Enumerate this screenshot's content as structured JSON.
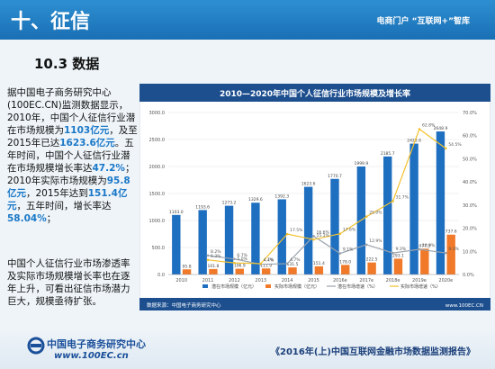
{
  "header": {
    "title": "十、征信",
    "brand": "电商门户 “互联网+”智库"
  },
  "section": "10.3 数据",
  "paragraphs": [
    [
      {
        "text": "据中国电子商务研究中心(100EC.CN)监测数据显示，2010年，中国个人征信行业潜在市场规模为"
      },
      {
        "text": "1103亿元",
        "emphasis": true
      },
      {
        "text": "，及至2015年已达"
      },
      {
        "text": "1623.6亿元",
        "emphasis": true
      },
      {
        "text": "。五年时间，中国个人征信行业潜在市场规模增长率达"
      },
      {
        "text": "47.2%",
        "emphasis": true
      },
      {
        "text": "；2010年实际市场规模为"
      },
      {
        "text": "95.8亿元",
        "emphasis": true
      },
      {
        "text": "，2015年达到"
      },
      {
        "text": "151.4亿元",
        "emphasis": true
      },
      {
        "text": "，五年时间，增长率达"
      },
      {
        "text": "58.04%",
        "emphasis": true
      },
      {
        "text": "；"
      }
    ],
    [
      {
        "text": "中国个人征信行业市场渗透率及实际市场规模增长率也在逐年上升，可看出征信市场潜力巨大，规模亟待扩张。"
      }
    ]
  ],
  "chart_data": {
    "type": "bar-line",
    "title": "2010—2020年中国个人征信行业市场规模及增长率",
    "categories": [
      "2010",
      "2011",
      "2012",
      "2013",
      "2014",
      "2015",
      "2016e",
      "2017e",
      "2018e",
      "2019e",
      "2020e"
    ],
    "series": [
      {
        "name": "潜在市场规模（亿元）",
        "kind": "bar",
        "color": "#1f6fc0",
        "values": [
          1103.0,
          1193.6,
          1273.2,
          1329.6,
          1392.3,
          1623.6,
          1770.7,
          1999.9,
          2185.7,
          2423.6,
          2648.9
        ],
        "value_labels": [
          "1103.0",
          "1193.6",
          "1273.2",
          "1329.6",
          "1392.3",
          "1623.6",
          "1770.7",
          "1999.9",
          "2185.7",
          "2423.6",
          "2648.9"
        ]
      },
      {
        "name": "实际市场规模（亿元）",
        "kind": "bar",
        "color": "#f07a2a",
        "values": [
          95.8,
          101.8,
          106.9,
          111.9,
          131.5,
          151.4,
          178.0,
          222.5,
          293.1,
          477.3,
          737.6
        ],
        "value_labels": [
          "95.8",
          "101.8",
          "106.9",
          "111.9",
          "131.5",
          "151.4",
          "178.0",
          "222.5",
          "293.1",
          "477.3",
          "737.6"
        ]
      },
      {
        "name": "潜在市场增速（%）",
        "kind": "line",
        "axis": "y2",
        "color": "#9aa3ad",
        "values": [
          null,
          8.2,
          6.7,
          4.4,
          4.7,
          16.6,
          9.1,
          12.9,
          9.3,
          10.9,
          9.3
        ],
        "value_labels": [
          null,
          "8.2%",
          "6.7%",
          "4.4%",
          "4.7%",
          "16.6%",
          "9.1%",
          "12.9%",
          "9.3%",
          "10.9%",
          "9.3%"
        ]
      },
      {
        "name": "实际市场增速（%）",
        "kind": "line",
        "axis": "y2",
        "color": "#f2c12e",
        "values": [
          null,
          6.3,
          5.0,
          4.7,
          17.5,
          15.1,
          17.6,
          25.0,
          31.7,
          62.8,
          54.5
        ],
        "value_labels": [
          null,
          "6.3%",
          "5.0%",
          "4.7%",
          "17.5%",
          "15.1%",
          "17.6%",
          "25.0%",
          "31.7%",
          "62.8%",
          "54.5%"
        ]
      }
    ],
    "ylim": [
      0,
      3000
    ],
    "yticks": [
      {
        "value": 0,
        "label": "0.0"
      },
      {
        "value": 500,
        "label": "500.0"
      },
      {
        "value": 1000,
        "label": "1000.0"
      },
      {
        "value": 1500,
        "label": "1500.0"
      },
      {
        "value": 2000,
        "label": "2000.0"
      },
      {
        "value": 2500,
        "label": "2500.0"
      },
      {
        "value": 3000,
        "label": "3000.0"
      }
    ],
    "y2lim": [
      0,
      70
    ],
    "y2ticks": [
      {
        "value": 0,
        "label": "0.0%"
      },
      {
        "value": 10,
        "label": "10.0%"
      },
      {
        "value": 20,
        "label": "20.0%"
      },
      {
        "value": 30,
        "label": "30.0%"
      },
      {
        "value": 40,
        "label": "40.0%"
      },
      {
        "value": 50,
        "label": "50.0%"
      },
      {
        "value": 60,
        "label": "60.0%"
      },
      {
        "value": 70,
        "label": "70.0%"
      }
    ],
    "grid": true,
    "source": "数据来源：中国电子商务研究中心",
    "site": "www.100EC.CN"
  },
  "footer": {
    "org": "中国电子商务研究中心",
    "url": "www.100EC.cn",
    "report": "《2016年(上)中国互联网金融市场数据监测报告》"
  }
}
